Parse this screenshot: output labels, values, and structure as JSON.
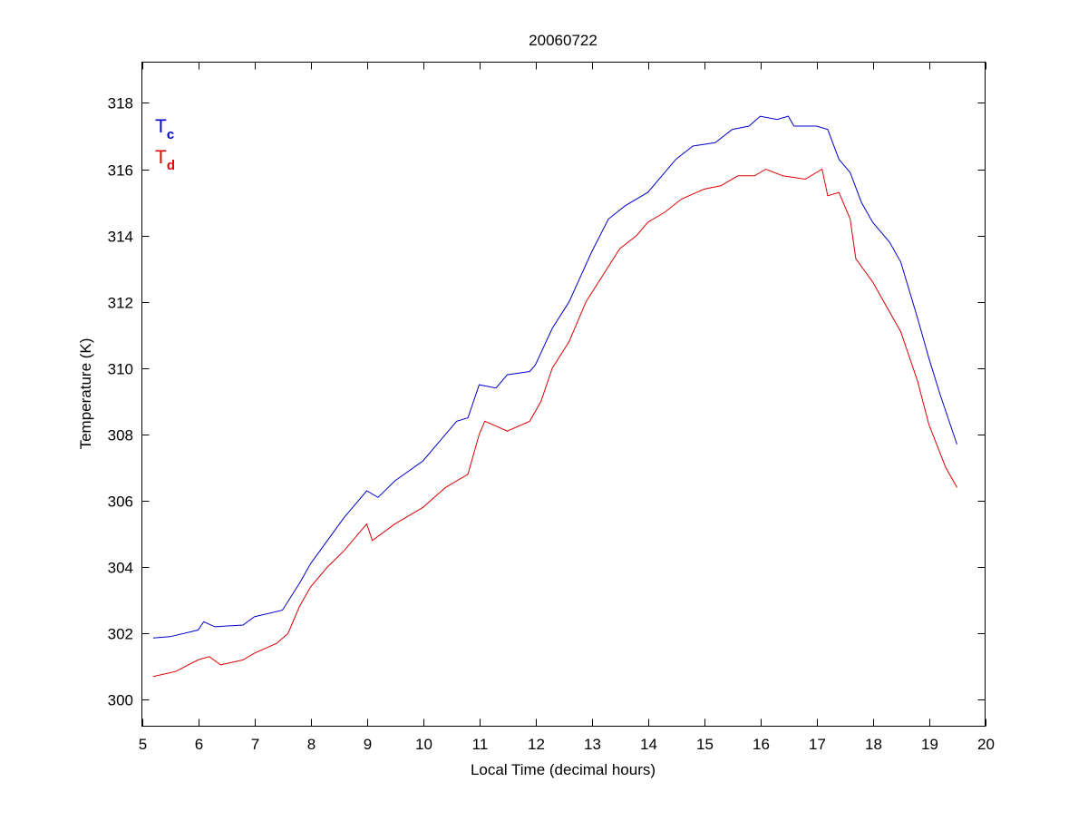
{
  "chart_data": {
    "type": "line",
    "title": "20060722",
    "xlabel": "Local Time (decimal hours)",
    "ylabel": "Temperature (K)",
    "xlim": [
      5,
      20
    ],
    "ylim": [
      299.2,
      319.23
    ],
    "xticks": [
      5,
      6,
      7,
      8,
      9,
      10,
      11,
      12,
      13,
      14,
      15,
      16,
      17,
      18,
      19,
      20
    ],
    "yticks": [
      300,
      302,
      304,
      306,
      308,
      310,
      312,
      314,
      316,
      318
    ],
    "grid": false,
    "legend_placement": "top-left",
    "series": [
      {
        "name": "Tc",
        "label_main": "T",
        "label_sub": "c",
        "color": "#0000cc",
        "x": [
          5.2,
          5.5,
          6.0,
          6.1,
          6.3,
          6.8,
          7.0,
          7.5,
          7.8,
          8.0,
          8.3,
          8.6,
          9.0,
          9.2,
          9.5,
          10.0,
          10.3,
          10.6,
          10.8,
          11.0,
          11.3,
          11.5,
          11.9,
          12.0,
          12.3,
          12.6,
          13.0,
          13.3,
          13.6,
          14.0,
          14.5,
          14.8,
          15.2,
          15.5,
          15.8,
          16.0,
          16.3,
          16.5,
          16.6,
          17.0,
          17.2,
          17.4,
          17.6,
          17.8,
          18.0,
          18.3,
          18.5,
          18.8,
          19.0,
          19.2,
          19.5
        ],
        "y": [
          301.86,
          301.9,
          302.1,
          302.35,
          302.2,
          302.25,
          302.5,
          302.7,
          303.5,
          304.1,
          304.8,
          305.5,
          306.3,
          306.1,
          306.6,
          307.2,
          307.8,
          308.4,
          308.5,
          309.5,
          309.4,
          309.8,
          309.9,
          310.1,
          311.2,
          312.0,
          313.5,
          314.5,
          314.9,
          315.3,
          316.3,
          316.7,
          316.8,
          317.2,
          317.3,
          317.6,
          317.5,
          317.6,
          317.3,
          317.3,
          317.2,
          316.3,
          315.9,
          315.0,
          314.4,
          313.8,
          313.2,
          311.5,
          310.3,
          309.2,
          307.7
        ]
      },
      {
        "name": "Td",
        "label_main": "T",
        "label_sub": "d",
        "color": "#dd0000",
        "x": [
          5.2,
          5.6,
          6.0,
          6.2,
          6.4,
          6.8,
          7.0,
          7.4,
          7.6,
          7.8,
          8.0,
          8.3,
          8.6,
          9.0,
          9.1,
          9.5,
          10.0,
          10.4,
          10.8,
          11.0,
          11.1,
          11.5,
          11.9,
          12.1,
          12.3,
          12.6,
          12.9,
          13.2,
          13.5,
          13.8,
          14.0,
          14.3,
          14.6,
          15.0,
          15.3,
          15.6,
          15.9,
          16.1,
          16.4,
          16.8,
          17.1,
          17.2,
          17.4,
          17.6,
          17.7,
          18.0,
          18.3,
          18.5,
          18.8,
          19.0,
          19.3,
          19.5
        ],
        "y": [
          300.7,
          300.85,
          301.2,
          301.3,
          301.05,
          301.2,
          301.4,
          301.7,
          302.0,
          302.8,
          303.4,
          304.0,
          304.5,
          305.3,
          304.8,
          305.3,
          305.8,
          306.4,
          306.8,
          308.0,
          308.4,
          308.1,
          308.4,
          309.0,
          310.0,
          310.8,
          312.0,
          312.8,
          313.6,
          314.0,
          314.4,
          314.7,
          315.1,
          315.4,
          315.5,
          315.8,
          315.8,
          316.0,
          315.8,
          315.7,
          316.0,
          315.2,
          315.3,
          314.5,
          313.3,
          312.6,
          311.7,
          311.1,
          309.6,
          308.3,
          307.0,
          306.4
        ]
      }
    ]
  }
}
